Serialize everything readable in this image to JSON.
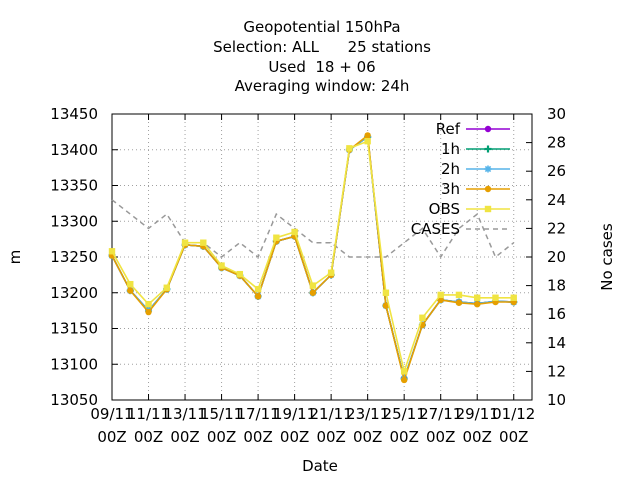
{
  "chart_data": {
    "type": "line",
    "title_lines": [
      "Geopotential 150hPa",
      "Selection: ALL      25 stations",
      "Used  18 + 06",
      "Averaging window: 24h"
    ],
    "xlabel": "Date",
    "ylabel": "m",
    "y2label": "No cases",
    "ylim": [
      13050,
      13450
    ],
    "yticks": [
      13050,
      13100,
      13150,
      13200,
      13250,
      13300,
      13350,
      13400,
      13450
    ],
    "y2lim": [
      10,
      30
    ],
    "y2ticks": [
      10,
      12,
      14,
      16,
      18,
      20,
      22,
      24,
      26,
      28,
      30
    ],
    "x_dates": [
      "09/11",
      "10/11",
      "11/11",
      "12/11",
      "13/11",
      "14/11",
      "15/11",
      "16/11",
      "17/11",
      "18/11",
      "19/11",
      "20/11",
      "21/11",
      "22/11",
      "23/11",
      "24/11",
      "25/11",
      "26/11",
      "27/11",
      "28/11",
      "29/11",
      "30/11",
      "01/12",
      "02/12"
    ],
    "xticks": [
      {
        "top": "09/11",
        "bottom": "00Z"
      },
      {
        "top": "11/11",
        "bottom": "00Z"
      },
      {
        "top": "13/11",
        "bottom": "00Z"
      },
      {
        "top": "15/11",
        "bottom": "00Z"
      },
      {
        "top": "17/11",
        "bottom": "00Z"
      },
      {
        "top": "19/11",
        "bottom": "00Z"
      },
      {
        "top": "21/11",
        "bottom": "00Z"
      },
      {
        "top": "23/11",
        "bottom": "00Z"
      },
      {
        "top": "25/11",
        "bottom": "00Z"
      },
      {
        "top": "27/11",
        "bottom": "00Z"
      },
      {
        "top": "29/11",
        "bottom": "00Z"
      },
      {
        "top": "01/12",
        "bottom": "00Z"
      }
    ],
    "x_day_min": 0,
    "x_day_max": 23,
    "grid": true,
    "legend_position": "top-right",
    "series": [
      {
        "name": "Ref",
        "color": "#9400d3",
        "marker": "circle",
        "axis": "y",
        "values": [
          13252,
          13203,
          13175,
          13205,
          13267,
          13265,
          13235,
          13224,
          13195,
          13272,
          13279,
          13200,
          13225,
          13400,
          13418,
          13182,
          13080,
          13155,
          13190,
          13187,
          13185,
          13188,
          13187
        ]
      },
      {
        "name": "1h",
        "color": "#009e73",
        "marker": "cross",
        "axis": "y",
        "values": [
          13252,
          13203,
          13175,
          13205,
          13267,
          13265,
          13235,
          13224,
          13195,
          13272,
          13279,
          13200,
          13225,
          13400,
          13418,
          13182,
          13080,
          13155,
          13190,
          13187,
          13185,
          13188,
          13187
        ]
      },
      {
        "name": "2h",
        "color": "#56b4e9",
        "marker": "star",
        "axis": "y",
        "values": [
          13252,
          13203,
          13175,
          13205,
          13267,
          13265,
          13235,
          13224,
          13195,
          13272,
          13279,
          13200,
          13225,
          13400,
          13418,
          13182,
          13080,
          13155,
          13190,
          13187,
          13185,
          13188,
          13187
        ]
      },
      {
        "name": "3h",
        "color": "#e69f00",
        "marker": "circle",
        "axis": "y",
        "values": [
          13252,
          13203,
          13173,
          13205,
          13267,
          13265,
          13235,
          13224,
          13195,
          13272,
          13279,
          13200,
          13225,
          13400,
          13420,
          13182,
          13078,
          13155,
          13190,
          13186,
          13184,
          13187,
          13187
        ]
      },
      {
        "name": "OBS",
        "color": "#f0e442",
        "marker": "square",
        "axis": "y",
        "values": [
          13258,
          13212,
          13184,
          13207,
          13270,
          13270,
          13238,
          13226,
          13205,
          13277,
          13285,
          13210,
          13228,
          13402,
          13412,
          13200,
          13090,
          13165,
          13197,
          13197,
          13193,
          13193,
          13193
        ]
      },
      {
        "name": "CASES",
        "color": "#999999",
        "dash": true,
        "marker": "none",
        "axis": "y2",
        "values": [
          24,
          23,
          22,
          23,
          21,
          21,
          20,
          21,
          20,
          23,
          22,
          21,
          21,
          20,
          20,
          20,
          21,
          22,
          20,
          22,
          23,
          20,
          21
        ]
      }
    ]
  }
}
